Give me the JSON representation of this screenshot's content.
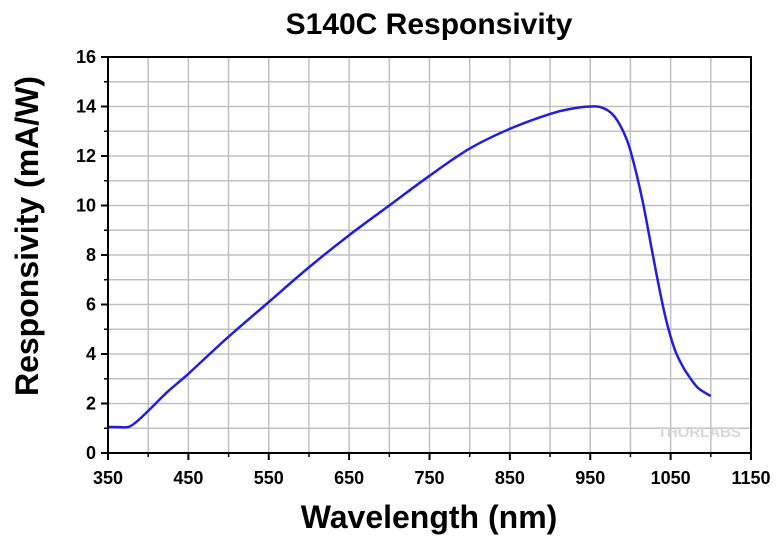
{
  "chart_data": {
    "type": "line",
    "title": "S140C Responsivity",
    "xlabel": "Wavelength (nm)",
    "ylabel": "Responsivity (mA/W)",
    "xlim": [
      350,
      1150
    ],
    "ylim": [
      0,
      16
    ],
    "xticks": [
      350,
      450,
      550,
      650,
      750,
      850,
      950,
      1050,
      1150
    ],
    "yticks": [
      0,
      2,
      4,
      6,
      8,
      10,
      12,
      14,
      16
    ],
    "grid": true,
    "line_color": "#1f1fe0",
    "grid_color": "#c0c0c0",
    "watermark": "THORLABS",
    "series": [
      {
        "x": [
          350,
          360,
          375,
          385,
          400,
          425,
          450,
          500,
          550,
          600,
          650,
          700,
          750,
          800,
          850,
          900,
          925,
          950,
          965,
          980,
          995,
          1005,
          1015,
          1025,
          1035,
          1045,
          1055,
          1065,
          1075,
          1085,
          1100
        ],
        "values": [
          1.05,
          1.05,
          1.05,
          1.25,
          1.7,
          2.5,
          3.2,
          4.7,
          6.1,
          7.5,
          8.8,
          10.0,
          11.2,
          12.3,
          13.1,
          13.7,
          13.9,
          14.0,
          13.95,
          13.6,
          12.7,
          11.6,
          10.2,
          8.5,
          6.8,
          5.3,
          4.2,
          3.5,
          3.0,
          2.6,
          2.3
        ]
      }
    ]
  }
}
